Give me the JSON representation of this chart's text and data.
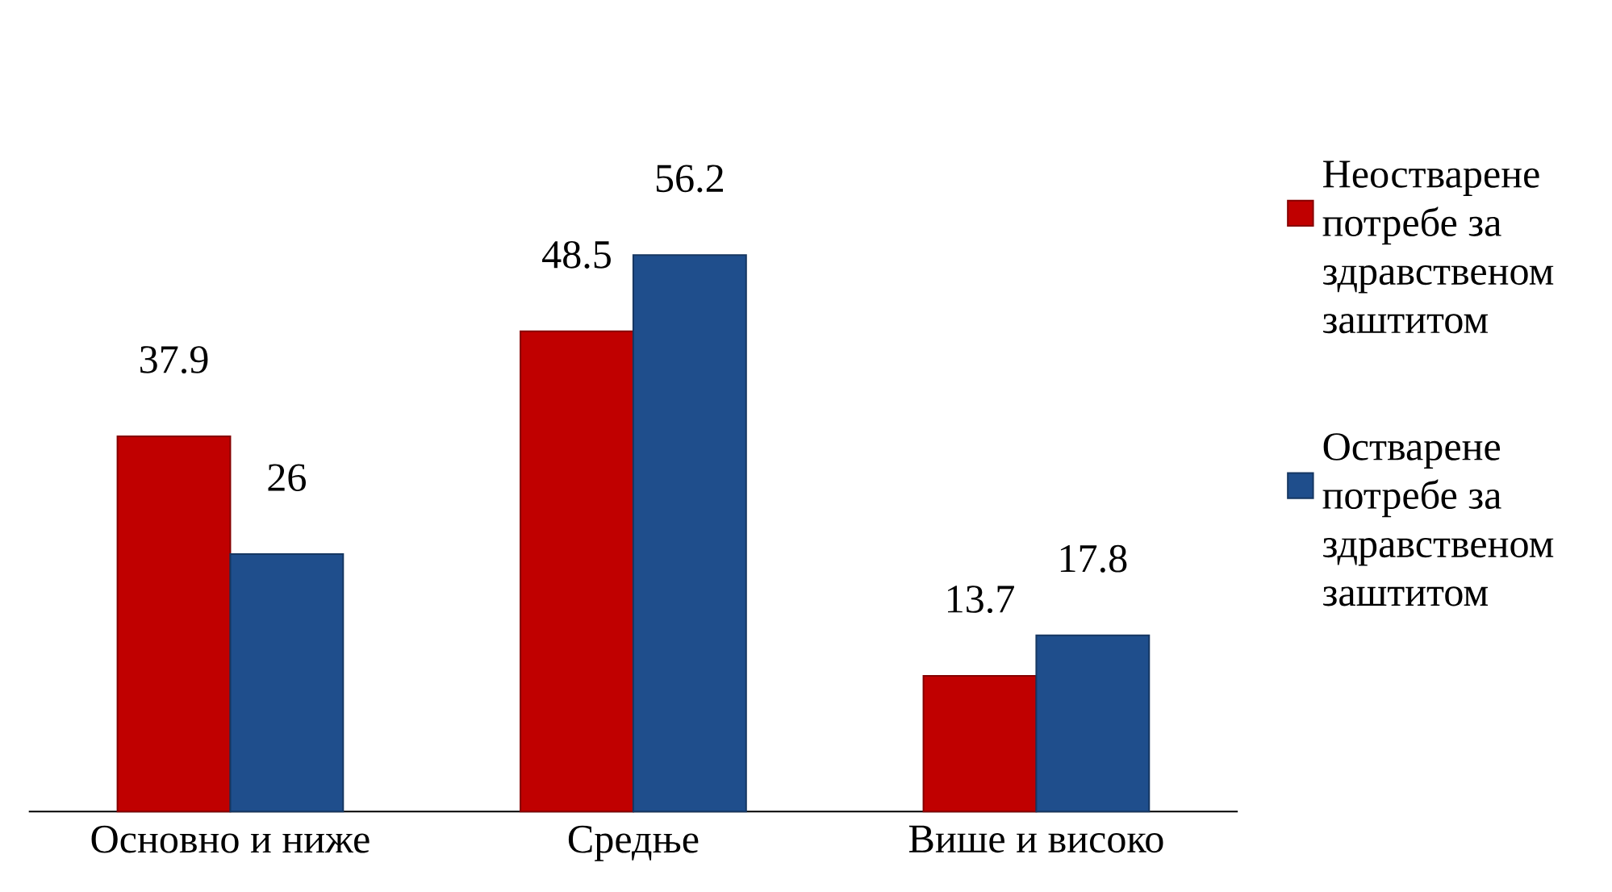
{
  "chart_data": {
    "type": "bar",
    "categories": [
      "Основно и ниже",
      "Средње",
      "Више и високо"
    ],
    "series": [
      {
        "name": "Неостварене потребе за здравственом заштитом",
        "color": "#c00000",
        "values": [
          37.9,
          48.5,
          13.7
        ]
      },
      {
        "name": "Остварене потребе за здравственом заштитом",
        "color": "#1f4e8c",
        "values": [
          26,
          56.2,
          17.8
        ]
      }
    ],
    "data_labels": true,
    "legend": "right"
  }
}
